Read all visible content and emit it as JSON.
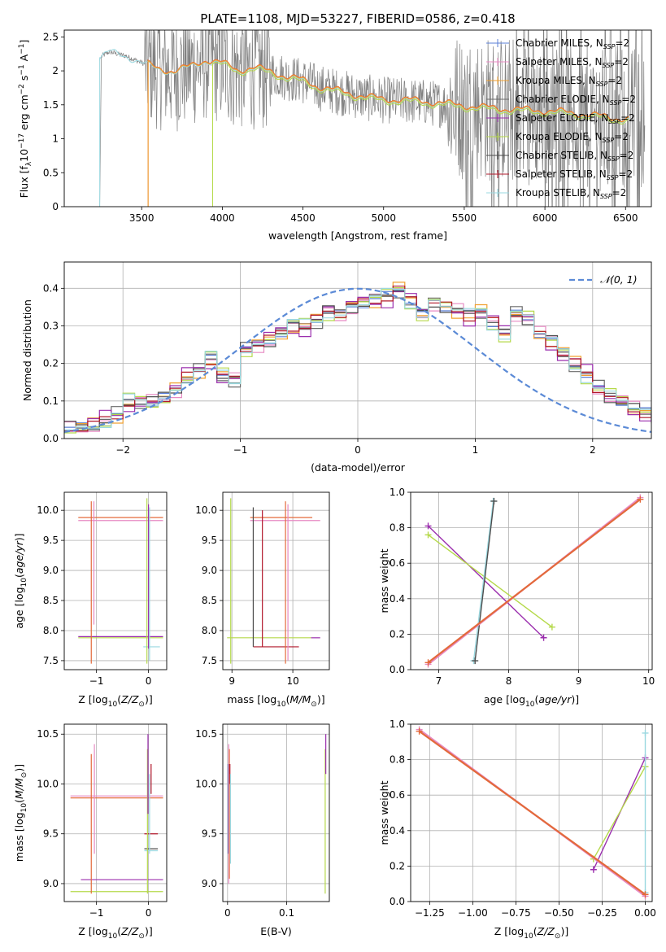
{
  "colors": {
    "chabrier_miles": "#5b7fd6",
    "salpeter_miles": "#e78ac3",
    "kroupa_miles": "#f0a030",
    "chabrier_elodie": "#6a6a6a",
    "salpeter_elodie": "#9b2fae",
    "kroupa_elodie": "#b5d94a",
    "chabrier_stelib": "#4d4d4d",
    "salpeter_stelib": "#b2182b",
    "kroupa_stelib": "#9ad8e0",
    "model_overlay": "#e36a3b",
    "data": "#808080",
    "normal": "#5b8ad6"
  },
  "chart_data": [
    {
      "id": "spectrum",
      "type": "line",
      "title": "PLATE=1108, MJD=53227, FIBERID=0586, z=0.418",
      "xlabel": "wavelength [Angstrom, rest frame]",
      "ylabel": "Flux [f_λ 10^-17 erg cm^-2 s^-1 A^-1]",
      "xlim": [
        3020,
        6660
      ],
      "ylim": [
        0,
        2.6
      ],
      "xticks": [
        3500,
        4000,
        4500,
        5000,
        5500,
        6000,
        6500
      ],
      "yticks": [
        0.0,
        0.5,
        1.0,
        1.5,
        2.0,
        2.5
      ],
      "legend_position": "upper right",
      "legend": [
        "Chabrier MILES, N_SSP=2",
        "Salpeter MILES, N_SSP=2",
        "Kroupa MILES, N_SSP=2",
        "Chabrier ELODIE, N_SSP=2",
        "Salpeter ELODIE, N_SSP=2",
        "Kroupa ELODIE, N_SSP=2",
        "Chabrier STELIB, N_SSP=2",
        "Salpeter STELIB, N_SSP=2",
        "Kroupa STELIB, N_SSP=2"
      ],
      "model_curve": [
        [
          3240,
          2.2
        ],
        [
          3300,
          2.28
        ],
        [
          3400,
          2.22
        ],
        [
          3500,
          2.12
        ],
        [
          3600,
          2.02
        ],
        [
          3700,
          1.98
        ],
        [
          3800,
          2.05
        ],
        [
          3900,
          2.15
        ],
        [
          4000,
          2.1
        ],
        [
          4100,
          2.0
        ],
        [
          4200,
          2.03
        ],
        [
          4300,
          1.98
        ],
        [
          4400,
          1.9
        ],
        [
          4500,
          1.85
        ],
        [
          4600,
          1.75
        ],
        [
          4700,
          1.7
        ],
        [
          4800,
          1.65
        ],
        [
          4900,
          1.6
        ],
        [
          5000,
          1.57
        ],
        [
          5200,
          1.55
        ],
        [
          5400,
          1.5
        ],
        [
          5600,
          1.45
        ],
        [
          5800,
          1.42
        ],
        [
          6000,
          1.4
        ],
        [
          6200,
          1.36
        ],
        [
          6400,
          1.3
        ],
        [
          6500,
          1.28
        ]
      ],
      "model_start": {
        "miles": 3540,
        "elodie": 3940,
        "stelib": 3240
      }
    },
    {
      "id": "residuals",
      "type": "line",
      "xlabel": "(data-model)/error",
      "ylabel": "Normed distribution",
      "xlim": [
        -2.5,
        2.5
      ],
      "ylim": [
        0,
        0.47
      ],
      "xticks": [
        -2,
        -1,
        0,
        1,
        2
      ],
      "yticks": [
        0.0,
        0.1,
        0.2,
        0.3,
        0.4
      ],
      "legend": [
        "𝒩(0, 1)"
      ],
      "legend_position": "upper right",
      "hist_x_start": -2.5,
      "hist_bin_width": 0.1,
      "hist_values": [
        0.03,
        0.03,
        0.035,
        0.045,
        0.06,
        0.095,
        0.1,
        0.1,
        0.11,
        0.13,
        0.16,
        0.18,
        0.21,
        0.17,
        0.16,
        0.24,
        0.25,
        0.26,
        0.28,
        0.3,
        0.3,
        0.32,
        0.34,
        0.33,
        0.35,
        0.36,
        0.37,
        0.38,
        0.4,
        0.37,
        0.33,
        0.36,
        0.35,
        0.34,
        0.33,
        0.34,
        0.31,
        0.28,
        0.33,
        0.32,
        0.28,
        0.26,
        0.23,
        0.2,
        0.17,
        0.13,
        0.11,
        0.1,
        0.08,
        0.07,
        0.06,
        0.05,
        0.05,
        0.04,
        0.035,
        0.035,
        0.03
      ],
      "series_offsets": [
        0.0,
        0.01,
        -0.01,
        0.015,
        0.02,
        -0.015,
        0.005,
        -0.005,
        0.012
      ]
    },
    {
      "id": "z_age",
      "type": "scatter",
      "xlabel": "Z [log10(Z/Z⊙)]",
      "ylabel": "age  [log10(age/yr)]",
      "xlim": [
        -1.62,
        0.35
      ],
      "ylim": [
        7.35,
        10.3
      ],
      "xticks": [
        -1,
        0
      ],
      "yticks": [
        7.5,
        8.0,
        8.5,
        9.0,
        9.5,
        10.0
      ],
      "hlines": [
        {
          "y": 9.88,
          "x0": -1.35,
          "x1": 0.28,
          "c": "model_overlay"
        },
        {
          "y": 9.83,
          "x0": -1.35,
          "x1": 0.28,
          "c": "salpeter_miles"
        },
        {
          "y": 7.88,
          "x0": -1.35,
          "x1": 0.28,
          "c": "kroupa_elodie"
        },
        {
          "y": 7.9,
          "x0": -1.35,
          "x1": 0.28,
          "c": "salpeter_elodie"
        },
        {
          "y": 7.73,
          "x0": -0.1,
          "x1": 0.22,
          "c": "kroupa_stelib"
        }
      ],
      "vlines": [
        {
          "x": -1.1,
          "y0": 7.45,
          "y1": 10.15,
          "c": "model_overlay"
        },
        {
          "x": -1.05,
          "y0": 8.1,
          "y1": 10.15,
          "c": "salpeter_miles"
        },
        {
          "x": -0.03,
          "y0": 7.45,
          "y1": 10.2,
          "c": "kroupa_elodie"
        },
        {
          "x": 0.0,
          "y0": 7.7,
          "y1": 10.1,
          "c": "salpeter_elodie"
        },
        {
          "x": 0.02,
          "y0": 7.5,
          "y1": 10.05,
          "c": "kroupa_stelib"
        }
      ]
    },
    {
      "id": "mass_age",
      "type": "scatter",
      "xlabel": "mass [log10(M/M⊙)]",
      "ylabel": "",
      "xlim": [
        8.85,
        10.6
      ],
      "ylim": [
        7.35,
        10.3
      ],
      "xticks": [
        9,
        10
      ],
      "yticks": [
        7.5,
        8.0,
        8.5,
        9.0,
        9.5,
        10.0
      ],
      "hlines": [
        {
          "y": 9.88,
          "x0": 9.3,
          "x1": 10.32,
          "c": "model_overlay"
        },
        {
          "y": 9.83,
          "x0": 9.3,
          "x1": 10.45,
          "c": "salpeter_miles"
        },
        {
          "y": 7.88,
          "x0": 8.92,
          "x1": 10.3,
          "c": "kroupa_elodie"
        },
        {
          "y": 7.88,
          "x0": 10.3,
          "x1": 10.45,
          "c": "salpeter_elodie"
        },
        {
          "y": 7.73,
          "x0": 9.35,
          "x1": 10.1,
          "c": "salpeter_stelib"
        }
      ],
      "vlines": [
        {
          "x": 8.98,
          "y0": 7.45,
          "y1": 10.2,
          "c": "kroupa_elodie"
        },
        {
          "x": 9.35,
          "y0": 7.73,
          "y1": 10.05,
          "c": "chabrier_stelib"
        },
        {
          "x": 9.5,
          "y0": 7.73,
          "y1": 10.0,
          "c": "salpeter_stelib"
        },
        {
          "x": 9.88,
          "y0": 7.45,
          "y1": 10.15,
          "c": "model_overlay"
        },
        {
          "x": 9.92,
          "y0": 7.5,
          "y1": 10.1,
          "c": "salpeter_miles"
        }
      ]
    },
    {
      "id": "age_weight",
      "type": "line",
      "xlabel": "age  [log10(age/yr)]",
      "ylabel": "mass weight",
      "xlim": [
        6.6,
        10.05
      ],
      "ylim": [
        0,
        1
      ],
      "xticks": [
        7,
        8,
        9,
        10
      ],
      "yticks": [
        0.0,
        0.2,
        0.4,
        0.6,
        0.8,
        1.0
      ],
      "segments": [
        {
          "c": "salpeter_elodie",
          "pts": [
            [
              6.85,
              0.81
            ],
            [
              8.5,
              0.18
            ]
          ]
        },
        {
          "c": "kroupa_elodie",
          "pts": [
            [
              6.85,
              0.76
            ],
            [
              8.62,
              0.24
            ]
          ]
        },
        {
          "c": "kroupa_stelib",
          "pts": [
            [
              7.5,
              0.05
            ],
            [
              7.78,
              0.95
            ]
          ]
        },
        {
          "c": "chabrier_stelib",
          "pts": [
            [
              7.52,
              0.05
            ],
            [
              7.79,
              0.95
            ]
          ]
        },
        {
          "c": "salpeter_miles",
          "pts": [
            [
              6.85,
              0.03
            ],
            [
              9.88,
              0.97
            ]
          ]
        },
        {
          "c": "model_overlay",
          "pts": [
            [
              6.85,
              0.04
            ],
            [
              9.88,
              0.96
            ]
          ]
        }
      ]
    },
    {
      "id": "z_mass",
      "type": "scatter",
      "xlabel": "Z [log10(Z/Z⊙)]",
      "ylabel": "mass [log10(M/M⊙)]",
      "xlim": [
        -1.62,
        0.35
      ],
      "ylim": [
        8.82,
        10.6
      ],
      "xticks": [
        -1,
        0
      ],
      "yticks": [
        9.0,
        9.5,
        10.0,
        10.5
      ],
      "hlines": [
        {
          "y": 9.88,
          "x0": -1.5,
          "x1": 0.28,
          "c": "salpeter_miles"
        },
        {
          "y": 9.86,
          "x0": -1.5,
          "x1": 0.28,
          "c": "model_overlay"
        },
        {
          "y": 9.5,
          "x0": -0.08,
          "x1": 0.18,
          "c": "salpeter_stelib"
        },
        {
          "y": 9.35,
          "x0": -0.08,
          "x1": 0.18,
          "c": "chabrier_stelib"
        },
        {
          "y": 9.33,
          "x0": -0.08,
          "x1": 0.18,
          "c": "kroupa_stelib"
        },
        {
          "y": 9.04,
          "x0": -1.3,
          "x1": 0.28,
          "c": "salpeter_elodie"
        },
        {
          "y": 8.92,
          "x0": -1.5,
          "x1": 0.28,
          "c": "kroupa_elodie"
        }
      ],
      "vlines": [
        {
          "x": -1.1,
          "y0": 8.9,
          "y1": 10.3,
          "c": "model_overlay"
        },
        {
          "x": -1.04,
          "y0": 9.3,
          "y1": 10.4,
          "c": "salpeter_miles"
        },
        {
          "x": -0.02,
          "y0": 8.9,
          "y1": 10.35,
          "c": "kroupa_elodie"
        },
        {
          "x": -0.01,
          "y0": 9.7,
          "y1": 10.5,
          "c": "salpeter_elodie"
        },
        {
          "x": 0.02,
          "y0": 9.3,
          "y1": 10.1,
          "c": "kroupa_stelib"
        },
        {
          "x": 0.05,
          "y0": 9.9,
          "y1": 10.2,
          "c": "salpeter_stelib"
        }
      ]
    },
    {
      "id": "ebv_mass",
      "type": "scatter",
      "xlabel": "E(B-V)",
      "ylabel": "",
      "xlim": [
        -0.008,
        0.172
      ],
      "ylim": [
        8.82,
        10.6
      ],
      "xticks": [
        0.0,
        0.1
      ],
      "yticks": [
        9.0,
        9.5,
        10.0,
        10.5
      ],
      "vlines": [
        {
          "x": 0.001,
          "y0": 9.3,
          "y1": 10.2,
          "c": "chabrier_miles"
        },
        {
          "x": 0.002,
          "y0": 9.0,
          "y1": 10.4,
          "c": "salpeter_miles"
        },
        {
          "x": 0.003,
          "y0": 9.05,
          "y1": 10.35,
          "c": "model_overlay"
        },
        {
          "x": 0.004,
          "y0": 10.0,
          "y1": 10.2,
          "c": "salpeter_stelib"
        },
        {
          "x": 0.005,
          "y0": 9.2,
          "y1": 10.1,
          "c": "kroupa_stelib"
        },
        {
          "x": 0.165,
          "y0": 8.9,
          "y1": 10.35,
          "c": "kroupa_elodie"
        },
        {
          "x": 0.166,
          "y0": 10.1,
          "y1": 10.5,
          "c": "salpeter_elodie"
        }
      ]
    },
    {
      "id": "z_weight",
      "type": "line",
      "xlabel": "Z [log10(Z/Z⊙)]",
      "ylabel": "mass weight",
      "xlim": [
        -1.36,
        0.04
      ],
      "ylim": [
        0,
        1
      ],
      "xticks": [
        -1.25,
        -1.0,
        -0.75,
        -0.5,
        -0.25,
        0.0
      ],
      "xticklabels": [
        "−1.25",
        "−1.00",
        "−0.75",
        "−0.50",
        "−0.25",
        "0.00"
      ],
      "yticks": [
        0.0,
        0.2,
        0.4,
        0.6,
        0.8,
        1.0
      ],
      "segments": [
        {
          "c": "salpeter_elodie",
          "pts": [
            [
              -0.3,
              0.18
            ],
            [
              0.0,
              0.81
            ]
          ]
        },
        {
          "c": "kroupa_elodie",
          "pts": [
            [
              -0.3,
              0.24
            ],
            [
              0.0,
              0.76
            ]
          ]
        },
        {
          "c": "kroupa_stelib",
          "pts": [
            [
              0.0,
              0.05
            ],
            [
              0.0,
              0.95
            ]
          ]
        },
        {
          "c": "salpeter_miles",
          "pts": [
            [
              -1.31,
              0.97
            ],
            [
              0.0,
              0.03
            ]
          ]
        },
        {
          "c": "model_overlay",
          "pts": [
            [
              -1.31,
              0.96
            ],
            [
              0.0,
              0.04
            ]
          ]
        }
      ]
    }
  ]
}
